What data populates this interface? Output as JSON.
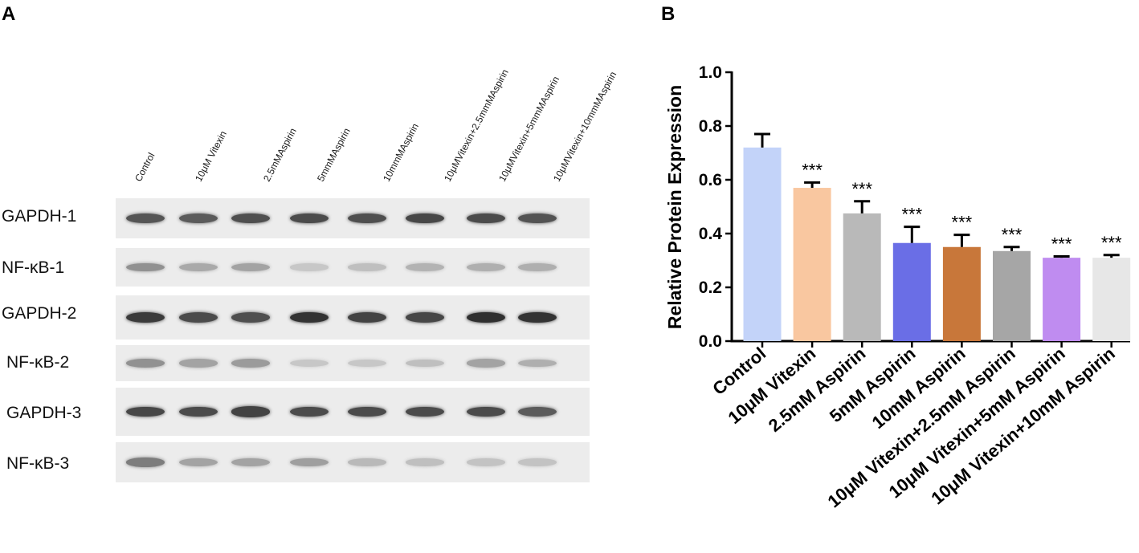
{
  "panel_a": {
    "letter": "A",
    "lanes": [
      "Control",
      "10μM Vitexin",
      "2.5mMAspirin",
      "5mmMAspirin",
      "10mmMAspirin",
      "10μMVitexin+2.5mmMAspirin",
      "10μMVitexin+5mmMAspirin",
      "10μMVitexin+10mmMAspirin"
    ],
    "rows": [
      {
        "label": "GAPDH-1",
        "intensities": [
          0.75,
          0.72,
          0.78,
          0.8,
          0.78,
          0.82,
          0.8,
          0.76
        ]
      },
      {
        "label": "NF-κB-1",
        "intensities": [
          0.45,
          0.33,
          0.36,
          0.18,
          0.22,
          0.28,
          0.3,
          0.3
        ]
      },
      {
        "label": "GAPDH-2",
        "intensities": [
          0.88,
          0.8,
          0.78,
          0.92,
          0.84,
          0.82,
          0.94,
          0.92
        ]
      },
      {
        "label": "NF-κB-2",
        "intensities": [
          0.45,
          0.36,
          0.4,
          0.18,
          0.18,
          0.22,
          0.36,
          0.3
        ]
      },
      {
        "label": "GAPDH-3",
        "intensities": [
          0.82,
          0.8,
          0.84,
          0.8,
          0.8,
          0.8,
          0.8,
          0.72
        ]
      },
      {
        "label": "NF-κB-3",
        "intensities": [
          0.55,
          0.36,
          0.36,
          0.38,
          0.25,
          0.22,
          0.2,
          0.2
        ]
      }
    ]
  },
  "panel_b": {
    "letter": "B",
    "significance_marker": "***"
  },
  "chart_data": {
    "type": "bar",
    "title": "",
    "xlabel": "",
    "ylabel": "Relative Protein Expression",
    "ylim": [
      0.0,
      1.0
    ],
    "yticks": [
      "0.0",
      "0.2",
      "0.4",
      "0.6",
      "0.8",
      "1.0"
    ],
    "categories": [
      "Control",
      "10μM Vitexin",
      "2.5mM Aspirin",
      "5mM Aspirin",
      "10mM Aspirin",
      "10μM Vitexin+2.5mM Aspirin",
      "10μM Vitexin+5mM Aspirin",
      "10μM Vitexin+10mM Aspirin"
    ],
    "values": [
      0.72,
      0.57,
      0.475,
      0.365,
      0.35,
      0.335,
      0.31,
      0.31
    ],
    "errors": [
      0.05,
      0.02,
      0.045,
      0.06,
      0.045,
      0.015,
      0.005,
      0.01
    ],
    "significance": [
      "",
      "***",
      "***",
      "***",
      "***",
      "***",
      "***",
      "***"
    ],
    "colors": [
      "#c3d3f9",
      "#f9c7a0",
      "#b9b9b9",
      "#6a6ee6",
      "#c8773a",
      "#a6a6a6",
      "#bf8cf0",
      "#e7e7e7"
    ],
    "grid": false,
    "legend": "none"
  }
}
